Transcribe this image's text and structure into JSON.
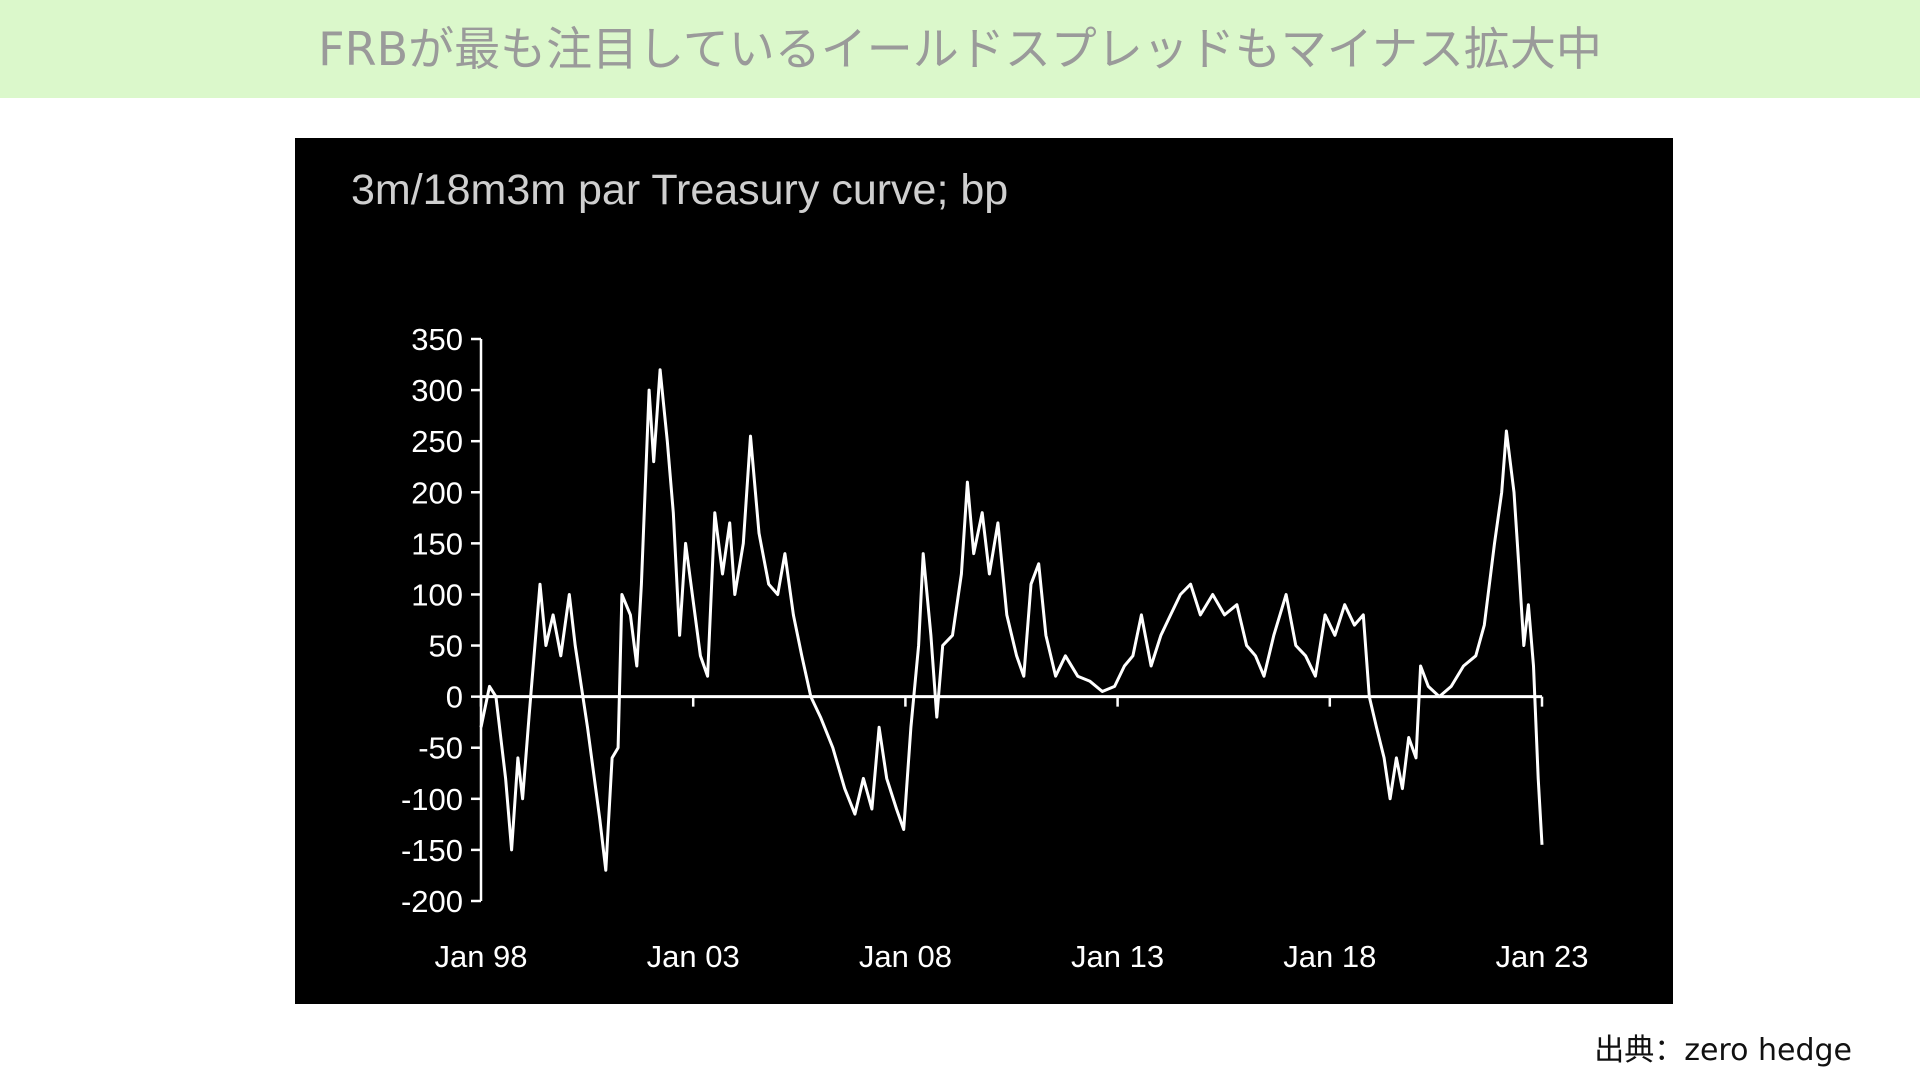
{
  "header": {
    "title": "FRBが最も注目しているイールドスプレッドもマイナス拡大中"
  },
  "source": "出典：zero hedge",
  "chart_data": {
    "type": "line",
    "title": "3m/18m3m par Treasury curve; bp",
    "color": "#ffffff",
    "x": [
      1998.0,
      1998.2,
      1998.35,
      1998.58,
      1998.72,
      1998.87,
      1998.98,
      1999.13,
      1999.27,
      1999.39,
      1999.53,
      1999.7,
      1999.88,
      2000.08,
      2000.22,
      2000.51,
      2000.8,
      2000.94,
      2001.09,
      2001.23,
      2001.32,
      2001.52,
      2001.67,
      2001.78,
      2001.96,
      2002.07,
      2002.22,
      2002.39,
      2002.53,
      2002.68,
      2002.82,
      2003.17,
      2003.34,
      2003.51,
      2003.69,
      2003.86,
      2003.98,
      2004.18,
      2004.35,
      2004.55,
      2004.78,
      2004.99,
      2005.16,
      2005.36,
      2005.56,
      2005.77,
      2006.0,
      2006.29,
      2006.57,
      2006.81,
      2007.01,
      2007.21,
      2007.38,
      2007.56,
      2007.79,
      2007.96,
      2008.13,
      2008.31,
      2008.42,
      2008.6,
      2008.74,
      2008.88,
      2009.11,
      2009.32,
      2009.46,
      2009.61,
      2009.81,
      2009.98,
      2010.18,
      2010.39,
      2010.62,
      2010.79,
      2010.96,
      2011.14,
      2011.31,
      2011.54,
      2011.77,
      2012.06,
      2012.35,
      2012.64,
      2012.93,
      2013.16,
      2013.36,
      2013.56,
      2013.79,
      2014.02,
      2014.25,
      2014.48,
      2014.72,
      2014.95,
      2015.24,
      2015.52,
      2015.81,
      2016.04,
      2016.25,
      2016.45,
      2016.68,
      2016.97,
      2017.2,
      2017.43,
      2017.66,
      2017.89,
      2018.12,
      2018.35,
      2018.58,
      2018.79,
      2018.93,
      2019.1,
      2019.28,
      2019.42,
      2019.57,
      2019.71,
      2019.86,
      2020.03,
      2020.14,
      2020.32,
      2020.58,
      2020.86,
      2021.15,
      2021.44,
      2021.64,
      2021.88,
      2022.05,
      2022.16,
      2022.34,
      2022.45,
      2022.57,
      2022.68,
      2022.8,
      2022.91,
      2023.0
    ],
    "values": [
      -30,
      10,
      0,
      -80,
      -150,
      -60,
      -100,
      -20,
      50,
      110,
      50,
      80,
      40,
      100,
      50,
      -30,
      -120,
      -170,
      -60,
      -50,
      100,
      80,
      30,
      110,
      300,
      230,
      320,
      250,
      180,
      60,
      150,
      40,
      20,
      180,
      120,
      170,
      100,
      150,
      255,
      160,
      110,
      100,
      140,
      80,
      40,
      0,
      -20,
      -50,
      -90,
      -115,
      -80,
      -110,
      -30,
      -80,
      -110,
      -130,
      -30,
      50,
      140,
      60,
      -20,
      50,
      60,
      120,
      210,
      140,
      180,
      120,
      170,
      80,
      40,
      20,
      110,
      130,
      60,
      20,
      40,
      20,
      15,
      5,
      10,
      30,
      40,
      80,
      30,
      60,
      80,
      100,
      110,
      80,
      100,
      80,
      90,
      50,
      40,
      20,
      60,
      100,
      50,
      40,
      20,
      80,
      60,
      90,
      70,
      80,
      0,
      -30,
      -60,
      -100,
      -60,
      -90,
      -40,
      -60,
      30,
      10,
      0,
      10,
      30,
      40,
      70,
      150,
      200,
      260,
      200,
      130,
      50,
      90,
      30,
      -80,
      -145
    ],
    "xlim": [
      1998,
      2023
    ],
    "xticks": [
      {
        "value": 1998,
        "label": "Jan 98"
      },
      {
        "value": 2003,
        "label": "Jan 03"
      },
      {
        "value": 2008,
        "label": "Jan 08"
      },
      {
        "value": 2013,
        "label": "Jan 13"
      },
      {
        "value": 2018,
        "label": "Jan 18"
      },
      {
        "value": 2023,
        "label": "Jan 23"
      }
    ],
    "ylim": [
      -200,
      350
    ],
    "yticks": [
      -200,
      -150,
      -100,
      -50,
      0,
      50,
      100,
      150,
      200,
      250,
      300,
      350
    ]
  }
}
